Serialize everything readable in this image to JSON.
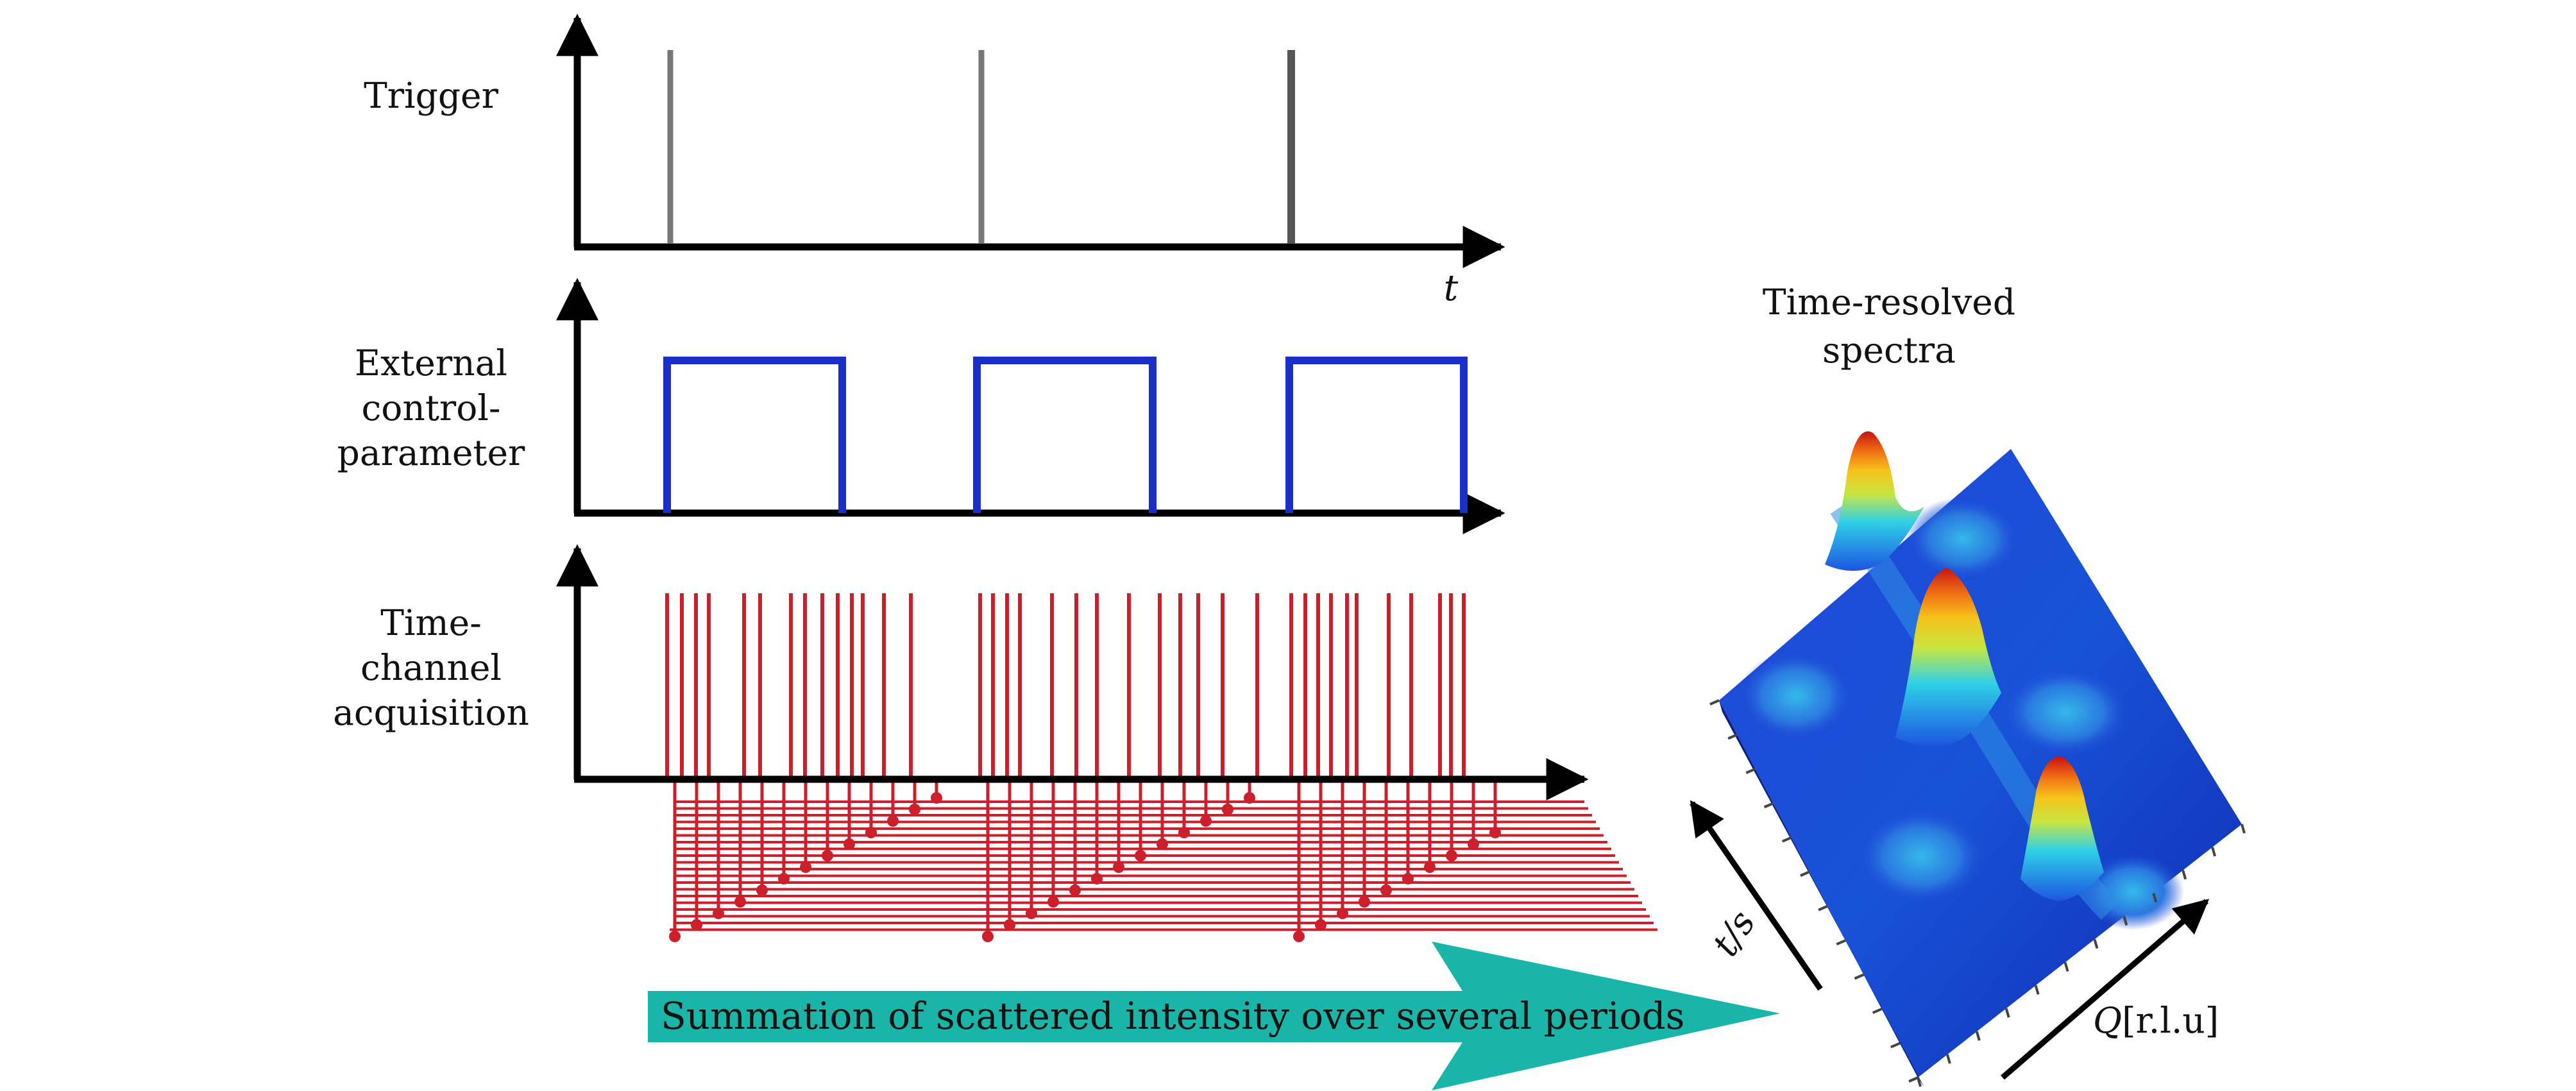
{
  "rows": {
    "trigger_label": "Trigger",
    "external_label_1": "External",
    "external_label_2": "control-",
    "external_label_3": "parameter",
    "acq_label_1": "Time-",
    "acq_label_2": "channel",
    "acq_label_3": "acquisition"
  },
  "axis": {
    "time_symbol": "t"
  },
  "spectra": {
    "title_1": "Time-resolved",
    "title_2": "spectra",
    "t_axis_label": "t/s",
    "q_axis_label_symbol": "Q",
    "q_axis_label_unit": "[r.l.u]"
  },
  "banner": {
    "text": "Summation of scattered intensity over several periods"
  },
  "colors": {
    "axis": "#000000",
    "trigger": "#777777",
    "square_wave": "#1a2fc8",
    "acquisition": "#cc1f2b",
    "banner": "#19b5a9"
  }
}
